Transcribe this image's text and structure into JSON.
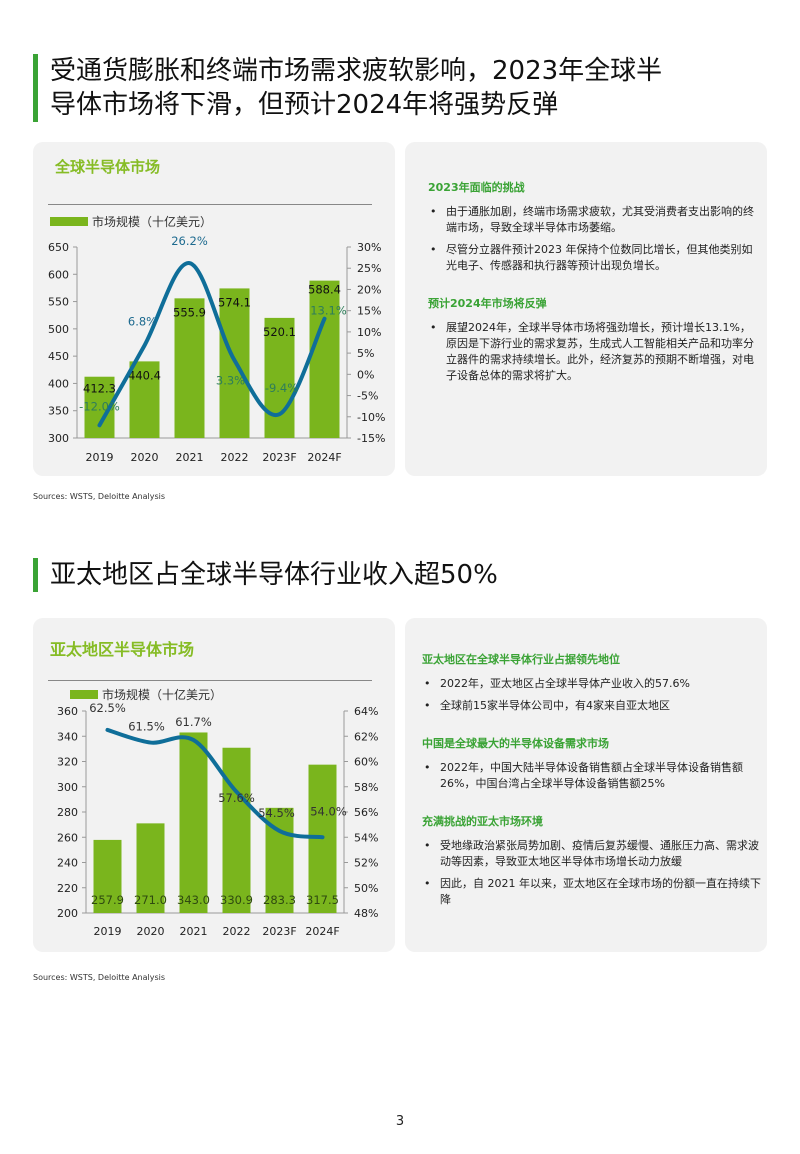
{
  "section1": {
    "title_line1": "受通货膨胀和终端市场需求疲软影响，2023年全球半",
    "title_line2": "导体市场将下滑，但预计2024年将强势反弹",
    "chart_title": "全球半导体市场",
    "legend": "市场规模（十亿美元）",
    "sources": "Sources: WSTS, Deloitte Analysis",
    "blocks": [
      {
        "heading": "2023年面临的挑战",
        "bullets": [
          "由于通胀加剧，终端市场需求疲软，尤其受消费者支出影响的终端市场，导致全球半导体市场萎缩。",
          "尽管分立器件预计2023 年保持个位数同比增长，但其他类别如光电子、传感器和执行器等预计出现负增长。"
        ]
      },
      {
        "heading": "预计2024年市场将反弹",
        "bullets": [
          "展望2024年，全球半导体市场将强劲增长，预计增长13.1%，原因是下游行业的需求复苏，生成式人工智能相关产品和功率分立器件的需求持续增长。此外，经济复苏的预期不断增强，对电子设备总体的需求将扩大。"
        ]
      }
    ]
  },
  "section2": {
    "title": "亚太地区占全球半导体行业收入超50%",
    "chart_title": "亚太地区半导体市场",
    "legend": "市场规模（十亿美元）",
    "sources": "Sources: WSTS, Deloitte Analysis",
    "blocks": [
      {
        "heading": "亚太地区在全球半导体行业占据领先地位",
        "bullets": [
          "2022年，亚太地区占全球半导体产业收入的57.6%",
          "全球前15家半导体公司中，有4家来自亚太地区"
        ]
      },
      {
        "heading": "中国是全球最大的半导体设备需求市场",
        "bullets": [
          "2022年，中国大陆半导体设备销售额占全球半导体设备销售额26%，中国台湾占全球半导体设备销售额25%"
        ]
      },
      {
        "heading": "充满挑战的亚太市场环境",
        "bullets": [
          "受地缘政治紧张局势加剧、疫情后复苏缓慢、通胀压力高、需求波动等因素，导致亚太地区半导体市场增长动力放缓",
          "因此，自 2021 年以来，亚太地区在全球市场的份额一直在持续下降"
        ]
      }
    ]
  },
  "page_number": "3",
  "colors": {
    "bar": "#7ab51d",
    "line": "#0f6e99",
    "accent": "#3aa335",
    "chart_title": "#86bc25"
  },
  "chart_data": [
    {
      "type": "bar+line",
      "title": "全球半导体市场",
      "categories": [
        "2019",
        "2020",
        "2021",
        "2022",
        "2023F",
        "2024F"
      ],
      "series": [
        {
          "name": "市场规模（十亿美元）",
          "type": "bar",
          "axis": "left",
          "values": [
            412.3,
            440.4,
            555.9,
            574.1,
            520.1,
            588.4
          ],
          "labels": [
            "412.3",
            "440.4",
            "555.9",
            "574.1",
            "520.1",
            "588.4"
          ]
        },
        {
          "type": "line",
          "axis": "right",
          "values": [
            -12.0,
            6.8,
            26.2,
            3.3,
            -9.4,
            13.1
          ],
          "labels": [
            "-12.0%",
            "6.8%",
            "26.2%",
            "3.3%",
            "-9.4%",
            "13.1%"
          ]
        }
      ],
      "ylim": [
        300,
        650
      ],
      "yticks": [
        "300",
        "350",
        "400",
        "450",
        "500",
        "550",
        "600",
        "650"
      ],
      "y2lim": [
        -15,
        30
      ],
      "y2ticks": [
        "-15%",
        "-10%",
        "-5%",
        "0%",
        "5%",
        "10%",
        "15%",
        "20%",
        "25%",
        "30%"
      ],
      "legend": "top-left",
      "grid": false
    },
    {
      "type": "bar+line",
      "title": "亚太地区半导体市场",
      "categories": [
        "2019",
        "2020",
        "2021",
        "2022",
        "2023F",
        "2024F"
      ],
      "series": [
        {
          "name": "市场规模（十亿美元）",
          "type": "bar",
          "axis": "left",
          "values": [
            257.9,
            271.0,
            343.0,
            330.9,
            283.3,
            317.5
          ],
          "labels": [
            "257.9",
            "271.0",
            "343.0",
            "330.9",
            "283.3",
            "317.5"
          ]
        },
        {
          "type": "line",
          "axis": "right",
          "values": [
            62.5,
            61.5,
            61.7,
            57.6,
            54.5,
            54.0
          ],
          "labels": [
            "62.5%",
            "61.5%",
            "61.7%",
            "57.6%",
            "54.5%",
            "54.0%"
          ]
        }
      ],
      "ylim": [
        200,
        360
      ],
      "yticks": [
        "200",
        "220",
        "240",
        "260",
        "280",
        "300",
        "320",
        "340",
        "360"
      ],
      "y2lim": [
        48,
        64
      ],
      "y2ticks": [
        "48%",
        "50%",
        "52%",
        "54%",
        "56%",
        "58%",
        "60%",
        "62%",
        "64%"
      ],
      "legend": "top-left",
      "grid": false
    }
  ]
}
